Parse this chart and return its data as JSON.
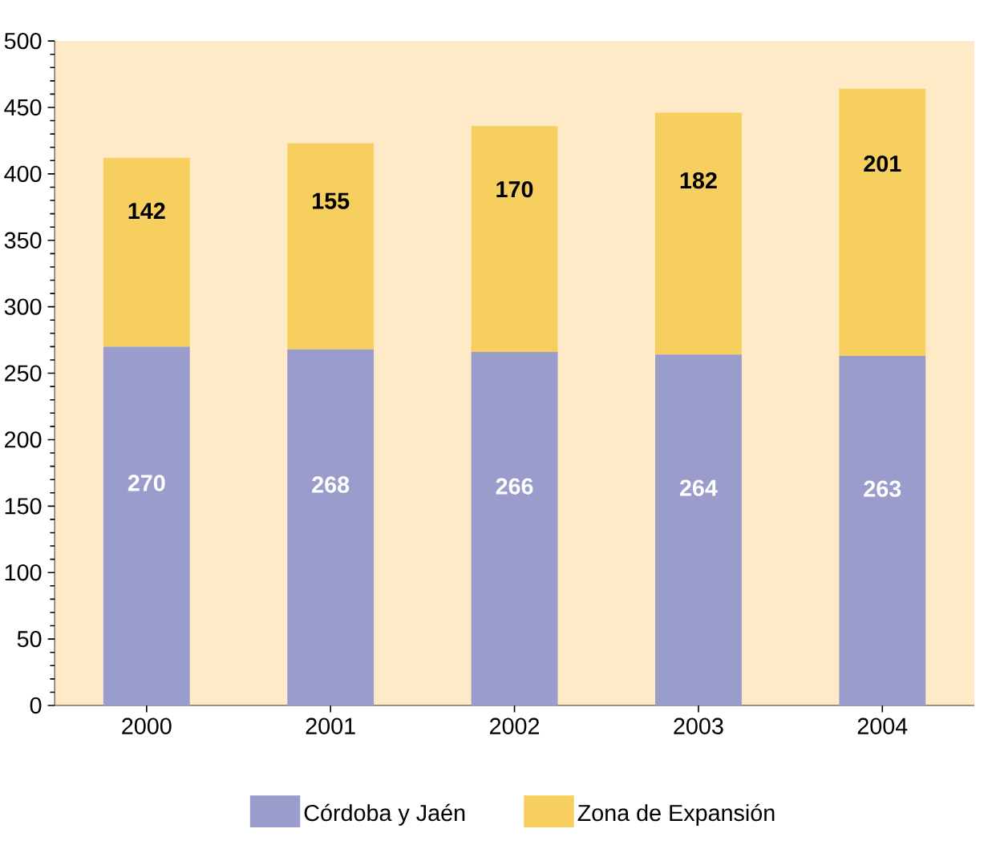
{
  "chart_data": {
    "type": "bar",
    "stacked": true,
    "categories": [
      "2000",
      "2001",
      "2002",
      "2003",
      "2004"
    ],
    "series": [
      {
        "name": "Córdoba y Jaén",
        "color": "#9a9ccb",
        "values": [
          270,
          268,
          266,
          264,
          263
        ]
      },
      {
        "name": "Zona de Expansión",
        "color": "#f7cf5e",
        "values": [
          142,
          155,
          170,
          182,
          201
        ]
      }
    ],
    "ylim": [
      0,
      500
    ],
    "yticks": [
      0,
      50,
      100,
      150,
      200,
      250,
      300,
      350,
      400,
      450,
      500
    ],
    "data_labels": true,
    "legend": "bottom"
  }
}
